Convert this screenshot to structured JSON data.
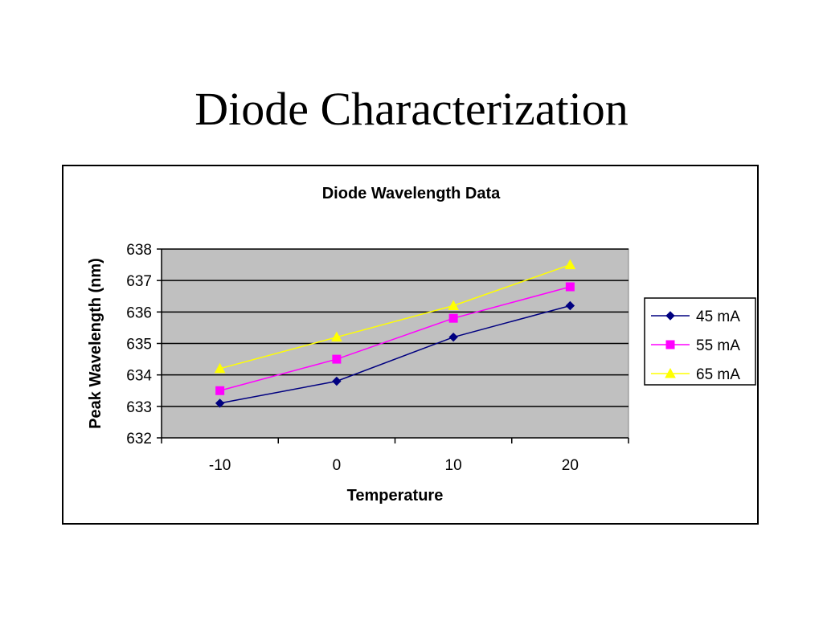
{
  "slide": {
    "title": "Diode Characterization"
  },
  "chart_data": {
    "type": "line",
    "title": "Diode Wavelength Data",
    "xlabel": "Temperature",
    "ylabel": "Peak Wavelength (nm)",
    "categories": [
      "-10",
      "0",
      "10",
      "20"
    ],
    "ylim": [
      632,
      638
    ],
    "ytick_step": 1,
    "grid": true,
    "legend_position": "right",
    "series": [
      {
        "name": "45 mA",
        "values": [
          633.1,
          633.8,
          635.2,
          636.2
        ],
        "color": "#000080",
        "marker": "diamond"
      },
      {
        "name": "55 mA",
        "values": [
          633.5,
          634.5,
          635.8,
          636.8
        ],
        "color": "#ff00ff",
        "marker": "square"
      },
      {
        "name": "65 mA",
        "values": [
          634.2,
          635.2,
          636.2,
          637.5
        ],
        "color": "#ffff00",
        "marker": "triangle"
      }
    ],
    "plot_background": "#c0c0c0"
  }
}
